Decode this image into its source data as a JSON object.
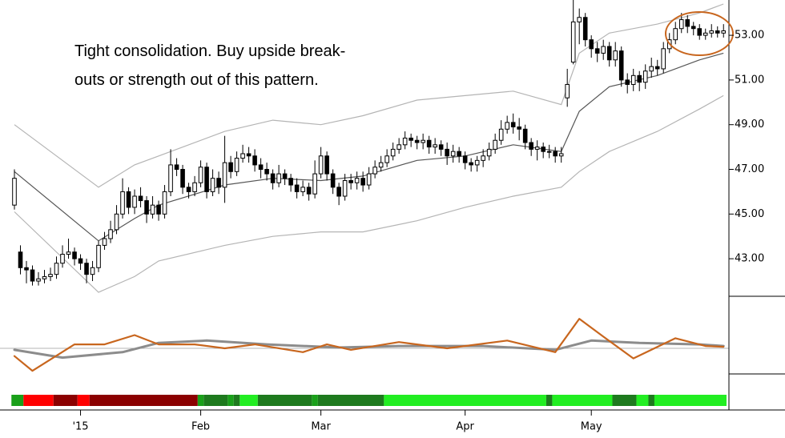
{
  "chart_data": [
    {
      "type": "candlestick",
      "annotation": [
        "Tight consolidation. Buy upside break-",
        "outs or strength out of this pattern."
      ],
      "xlim": [
        -2.4,
        118.9
      ],
      "xticks": [
        {
          "value": 11,
          "label": "'15"
        },
        {
          "value": 31,
          "label": "Feb"
        },
        {
          "value": 51,
          "label": "Mar"
        },
        {
          "value": 75,
          "label": "Apr"
        },
        {
          "value": 96,
          "label": "May"
        }
      ],
      "ylim": [
        41.32,
        54.58
      ],
      "yticks": [
        {
          "value": 43,
          "label": "43.00"
        },
        {
          "value": 45,
          "label": "45.00"
        },
        {
          "value": 47,
          "label": "47.00"
        },
        {
          "value": 49,
          "label": "49.00"
        },
        {
          "value": 51,
          "label": "51.00"
        },
        {
          "value": 53,
          "label": "53.00"
        }
      ],
      "up_color": "#ffffff",
      "down_color": "#000000",
      "open": [
        45.4,
        43.3,
        42.6,
        42.5,
        42.0,
        42.1,
        42.2,
        42.3,
        42.8,
        43.2,
        43.3,
        43.0,
        42.8,
        42.3,
        42.6,
        43.6,
        43.9,
        44.3,
        45.0,
        46.0,
        45.3,
        45.8,
        45.6,
        45.0,
        45.4,
        45.0,
        46.0,
        47.2,
        47.0,
        46.2,
        46.0,
        46.4,
        47.1,
        46.0,
        46.6,
        46.2,
        47.3,
        46.9,
        47.5,
        47.7,
        47.6,
        47.2,
        47.0,
        46.8,
        46.4,
        46.8,
        46.6,
        46.3,
        46.0,
        46.2,
        45.9,
        46.8,
        47.6,
        46.8,
        46.2,
        45.8,
        46.5,
        46.4,
        46.6,
        46.3,
        46.8,
        47.1,
        47.3,
        47.6,
        47.9,
        48.1,
        48.4,
        48.3,
        48.2,
        48.3,
        48.0,
        48.1,
        47.9,
        47.6,
        47.8,
        47.6,
        47.3,
        47.2,
        47.4,
        47.6,
        47.9,
        48.3,
        48.8,
        49.1,
        48.9,
        48.8,
        48.2,
        47.9,
        48.0,
        47.8,
        47.8,
        47.6,
        50.2,
        51.8,
        53.6,
        53.8,
        52.8,
        52.4,
        52.2,
        52.5,
        51.9,
        52.3,
        51.0,
        50.8,
        51.2,
        50.9,
        51.4,
        51.6,
        51.5,
        52.4,
        52.8,
        53.3,
        53.7,
        53.4,
        53.3,
        53.0,
        53.1,
        53.2,
        53.1
      ],
      "high": [
        47.0,
        43.6,
        42.9,
        42.7,
        42.4,
        42.5,
        42.6,
        43.1,
        43.6,
        43.9,
        43.5,
        43.2,
        43.0,
        42.9,
        43.8,
        44.2,
        44.7,
        45.4,
        46.6,
        46.2,
        46.1,
        46.2,
        45.8,
        45.8,
        45.6,
        46.3,
        47.9,
        47.5,
        47.2,
        46.4,
        46.7,
        47.4,
        47.3,
        47.0,
        46.9,
        48.5,
        47.6,
        47.8,
        48.1,
        48.0,
        47.9,
        47.5,
        47.3,
        47.0,
        47.2,
        47.0,
        46.8,
        46.6,
        46.5,
        46.4,
        47.4,
        48.0,
        47.8,
        47.0,
        46.4,
        46.8,
        46.8,
        46.9,
        46.9,
        47.1,
        47.4,
        47.6,
        47.9,
        48.2,
        48.4,
        48.7,
        48.6,
        48.5,
        48.6,
        48.5,
        48.4,
        48.3,
        48.2,
        48.1,
        48.0,
        47.8,
        47.5,
        47.6,
        47.9,
        48.2,
        48.6,
        49.2,
        49.4,
        49.5,
        49.3,
        49.0,
        48.4,
        48.3,
        48.2,
        48.1,
        48.0,
        48.0,
        51.5,
        54.6,
        54.2,
        54.0,
        53.0,
        52.7,
        52.8,
        52.7,
        52.7,
        52.5,
        51.3,
        51.5,
        51.4,
        51.7,
        52.0,
        51.9,
        52.7,
        53.1,
        53.6,
        54.0,
        53.9,
        53.6,
        53.5,
        53.3,
        53.5,
        53.4,
        53.5
      ],
      "low": [
        45.2,
        42.3,
        41.9,
        41.8,
        41.8,
        41.9,
        42.0,
        42.1,
        42.6,
        43.0,
        42.7,
        42.5,
        41.9,
        42.0,
        42.4,
        43.4,
        43.7,
        44.1,
        44.8,
        45.0,
        45.0,
        45.3,
        44.6,
        44.8,
        44.7,
        44.8,
        45.8,
        46.7,
        45.9,
        45.7,
        45.8,
        46.2,
        45.7,
        45.8,
        45.9,
        45.5,
        46.6,
        46.7,
        47.3,
        47.3,
        46.9,
        46.6,
        46.5,
        46.1,
        46.2,
        46.3,
        46.0,
        45.7,
        45.8,
        45.6,
        45.7,
        46.6,
        46.5,
        45.9,
        45.4,
        45.6,
        46.1,
        46.1,
        46.0,
        46.1,
        46.6,
        46.9,
        47.1,
        47.4,
        47.7,
        47.9,
        48.0,
        47.9,
        47.9,
        47.7,
        47.7,
        47.6,
        47.2,
        47.3,
        47.3,
        47.0,
        46.9,
        46.9,
        47.1,
        47.4,
        47.7,
        48.1,
        48.6,
        48.6,
        48.3,
        47.9,
        47.6,
        47.4,
        47.5,
        47.5,
        47.3,
        47.3,
        49.8,
        51.7,
        52.6,
        52.5,
        52.0,
        51.8,
        51.9,
        51.6,
        51.6,
        50.7,
        50.4,
        50.5,
        50.5,
        50.6,
        51.1,
        51.2,
        51.3,
        52.2,
        52.6,
        53.1,
        53.1,
        53.0,
        52.8,
        52.8,
        52.9,
        52.9,
        52.9
      ],
      "close": [
        46.6,
        42.6,
        42.5,
        42.0,
        42.1,
        42.2,
        42.3,
        42.8,
        43.2,
        43.3,
        43.0,
        42.8,
        42.3,
        42.6,
        43.6,
        43.9,
        44.3,
        45.0,
        46.0,
        45.3,
        45.8,
        45.6,
        45.0,
        45.4,
        45.0,
        46.0,
        47.2,
        47.0,
        46.2,
        46.0,
        46.4,
        47.1,
        46.0,
        46.6,
        46.2,
        47.3,
        46.9,
        47.5,
        47.7,
        47.6,
        47.2,
        47.0,
        46.8,
        46.4,
        46.8,
        46.6,
        46.3,
        46.0,
        46.2,
        45.9,
        46.8,
        47.6,
        46.8,
        46.2,
        45.8,
        46.5,
        46.4,
        46.6,
        46.3,
        46.8,
        47.1,
        47.3,
        47.6,
        47.9,
        48.1,
        48.4,
        48.3,
        48.2,
        48.3,
        48.0,
        48.1,
        47.9,
        47.6,
        47.8,
        47.6,
        47.3,
        47.2,
        47.4,
        47.6,
        47.9,
        48.3,
        48.8,
        49.1,
        48.9,
        48.8,
        48.2,
        47.9,
        48.0,
        47.8,
        47.8,
        47.6,
        47.7,
        50.8,
        53.6,
        53.8,
        52.8,
        52.4,
        52.2,
        52.5,
        51.9,
        52.3,
        51.0,
        50.8,
        51.2,
        50.9,
        51.4,
        51.6,
        51.5,
        52.4,
        52.8,
        53.3,
        53.7,
        53.4,
        53.3,
        53.0,
        53.1,
        53.2,
        53.1,
        53.2
      ],
      "bands": [
        {
          "color": "#b4b4b4",
          "x": [
            0,
            14,
            20,
            24,
            35,
            43,
            51,
            58,
            67,
            75,
            83,
            91,
            94,
            99,
            107,
            114,
            118
          ],
          "values": [
            49.0,
            46.2,
            47.2,
            47.6,
            48.7,
            49.2,
            49.0,
            49.4,
            50.1,
            50.3,
            50.5,
            49.9,
            52.2,
            53.1,
            53.5,
            54.0,
            54.4
          ]
        },
        {
          "color": "#555555",
          "x": [
            0,
            14,
            20,
            24,
            35,
            43,
            51,
            58,
            67,
            75,
            83,
            91,
            94,
            99,
            107,
            114,
            118
          ],
          "values": [
            46.9,
            43.8,
            44.8,
            45.4,
            46.3,
            46.6,
            46.5,
            46.7,
            47.4,
            47.6,
            48.1,
            47.8,
            49.6,
            50.7,
            51.2,
            51.9,
            52.2
          ]
        },
        {
          "color": "#b4b4b4",
          "x": [
            0,
            14,
            20,
            24,
            35,
            43,
            51,
            58,
            67,
            75,
            83,
            91,
            94,
            99,
            107,
            114,
            118
          ],
          "values": [
            45.1,
            41.5,
            42.2,
            42.9,
            43.6,
            44.0,
            44.2,
            44.2,
            44.7,
            45.3,
            45.8,
            46.2,
            46.9,
            47.8,
            48.7,
            49.7,
            50.3
          ]
        }
      ]
    },
    {
      "type": "line",
      "ylim": [
        0,
        100
      ],
      "reference": 33,
      "reference_color": "#b4b4b4",
      "series": [
        {
          "color": "#8c8c8c",
          "width": 3,
          "x": [
            0,
            8,
            18,
            24,
            32,
            42,
            54,
            64,
            78,
            90,
            96,
            104,
            114,
            118
          ],
          "values": [
            31,
            21,
            28,
            40,
            43,
            38,
            34,
            36,
            36,
            31,
            43,
            40,
            38,
            36
          ]
        },
        {
          "color": "#c8661e",
          "width": 2.2,
          "x": [
            0,
            3,
            10,
            15,
            20,
            24,
            30,
            35,
            40,
            48,
            52,
            56,
            64,
            72,
            82,
            90,
            94,
            98,
            103,
            110,
            115,
            118
          ],
          "values": [
            23,
            4,
            38,
            38,
            50,
            38,
            38,
            33,
            38,
            28,
            38,
            31,
            41,
            33,
            43,
            28,
            71,
            48,
            20,
            46,
            36,
            35
          ]
        }
      ]
    },
    {
      "type": "strip",
      "segments": [
        {
          "from": 0,
          "to": 1,
          "color": "#1aa01a"
        },
        {
          "from": 2,
          "to": 6,
          "color": "#ff0000"
        },
        {
          "from": 7,
          "to": 10,
          "color": "#8b0000"
        },
        {
          "from": 11,
          "to": 12,
          "color": "#ff0000"
        },
        {
          "from": 13,
          "to": 30,
          "color": "#8b0000"
        },
        {
          "from": 31,
          "to": 31,
          "color": "#1aa01a"
        },
        {
          "from": 32,
          "to": 35,
          "color": "#1e7a1e"
        },
        {
          "from": 36,
          "to": 36,
          "color": "#1aa01a"
        },
        {
          "from": 37,
          "to": 37,
          "color": "#1e7a1e"
        },
        {
          "from": 38,
          "to": 40,
          "color": "#22ee22"
        },
        {
          "from": 41,
          "to": 49,
          "color": "#1e7a1e"
        },
        {
          "from": 50,
          "to": 50,
          "color": "#1aa01a"
        },
        {
          "from": 51,
          "to": 61,
          "color": "#1e7a1e"
        },
        {
          "from": 62,
          "to": 88,
          "color": "#22ee22"
        },
        {
          "from": 89,
          "to": 89,
          "color": "#1e7a1e"
        },
        {
          "from": 90,
          "to": 99,
          "color": "#22ee22"
        },
        {
          "from": 100,
          "to": 103,
          "color": "#1e7a1e"
        },
        {
          "from": 104,
          "to": 105,
          "color": "#22ee22"
        },
        {
          "from": 106,
          "to": 106,
          "color": "#1e7a1e"
        },
        {
          "from": 107,
          "to": 118,
          "color": "#22ee22"
        }
      ]
    }
  ]
}
